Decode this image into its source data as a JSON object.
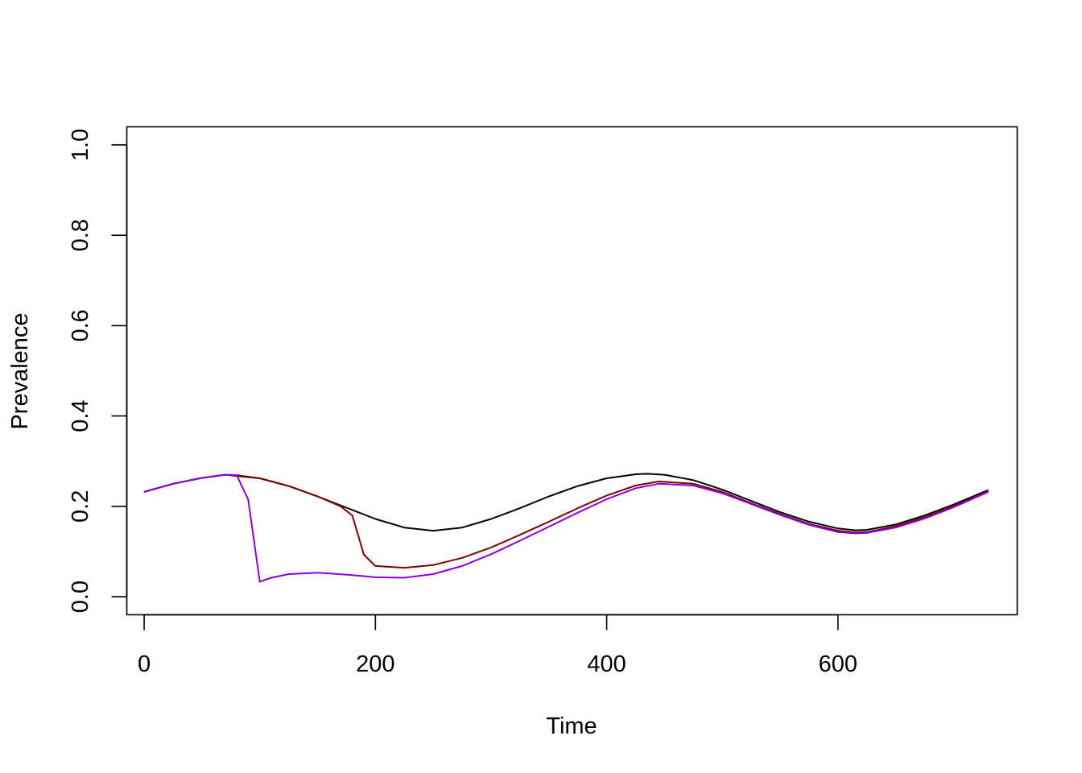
{
  "chart_data": {
    "type": "line",
    "title": "",
    "xlabel": "Time",
    "ylabel": "Prevalence",
    "xlim": [
      -15,
      755
    ],
    "ylim": [
      -0.04,
      1.04
    ],
    "xticks": [
      0,
      200,
      400,
      600
    ],
    "yticks": [
      0.0,
      0.2,
      0.4,
      0.6,
      0.8,
      1.0
    ],
    "xtick_labels": [
      "0",
      "200",
      "400",
      "600"
    ],
    "ytick_labels": [
      "0.0",
      "0.2",
      "0.4",
      "0.6",
      "0.8",
      "1.0"
    ],
    "grid": false,
    "legend": "none",
    "series": [
      {
        "color": "#000000",
        "x": [
          0,
          25,
          50,
          70,
          100,
          125,
          150,
          175,
          200,
          225,
          250,
          275,
          300,
          325,
          350,
          375,
          400,
          425,
          435,
          450,
          475,
          500,
          525,
          550,
          575,
          600,
          615,
          625,
          650,
          675,
          700,
          730
        ],
        "y": [
          0.232,
          0.25,
          0.263,
          0.27,
          0.262,
          0.245,
          0.222,
          0.197,
          0.172,
          0.153,
          0.146,
          0.153,
          0.172,
          0.196,
          0.222,
          0.245,
          0.262,
          0.271,
          0.272,
          0.27,
          0.258,
          0.237,
          0.212,
          0.187,
          0.166,
          0.151,
          0.147,
          0.148,
          0.16,
          0.18,
          0.204,
          0.236
        ]
      },
      {
        "color": "#7a0000",
        "x": [
          0,
          25,
          50,
          70,
          80,
          100,
          125,
          150,
          170,
          180,
          190,
          200,
          225,
          250,
          275,
          300,
          325,
          350,
          375,
          400,
          425,
          445,
          475,
          500,
          525,
          550,
          575,
          600,
          615,
          625,
          650,
          675,
          700,
          730
        ],
        "y": [
          0.232,
          0.25,
          0.263,
          0.27,
          0.269,
          0.262,
          0.245,
          0.222,
          0.2,
          0.18,
          0.093,
          0.068,
          0.064,
          0.07,
          0.086,
          0.109,
          0.137,
          0.166,
          0.196,
          0.224,
          0.246,
          0.255,
          0.25,
          0.232,
          0.207,
          0.183,
          0.161,
          0.146,
          0.142,
          0.143,
          0.156,
          0.176,
          0.2,
          0.234
        ]
      },
      {
        "color": "#8b00e0",
        "x": [
          0,
          25,
          50,
          70,
          80,
          90,
          100,
          110,
          125,
          150,
          175,
          200,
          225,
          250,
          275,
          300,
          325,
          350,
          375,
          400,
          425,
          445,
          475,
          500,
          525,
          550,
          575,
          600,
          615,
          625,
          650,
          675,
          700,
          730
        ],
        "y": [
          0.232,
          0.25,
          0.263,
          0.27,
          0.269,
          0.215,
          0.033,
          0.042,
          0.05,
          0.053,
          0.049,
          0.043,
          0.042,
          0.05,
          0.068,
          0.094,
          0.124,
          0.155,
          0.186,
          0.216,
          0.24,
          0.25,
          0.246,
          0.229,
          0.205,
          0.181,
          0.159,
          0.143,
          0.14,
          0.141,
          0.153,
          0.173,
          0.198,
          0.232
        ]
      }
    ]
  }
}
